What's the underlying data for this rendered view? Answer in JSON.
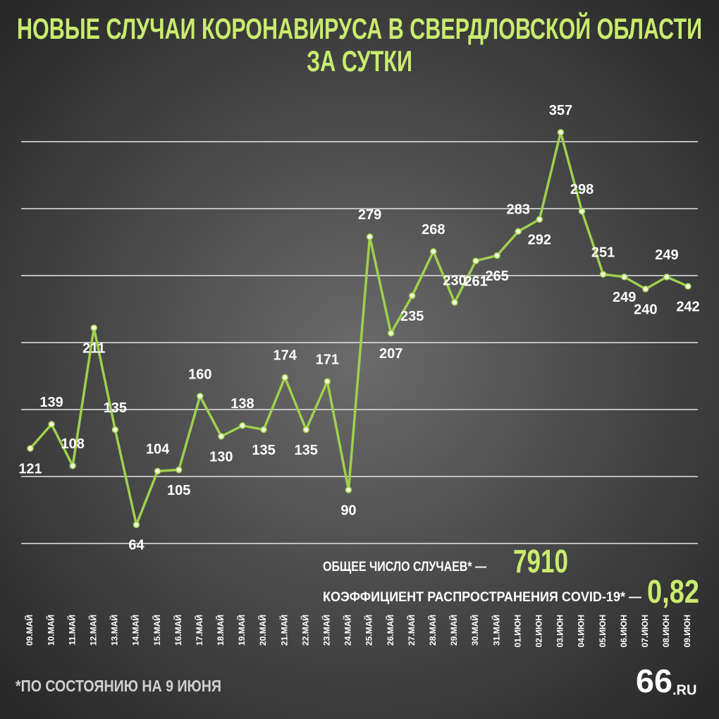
{
  "chart_data": {
    "type": "line",
    "title": [
      "НОВЫЕ СЛУЧАИ КОРОНАВИРУСА В СВЕРДЛОВСКОЙ ОБЛАСТИ",
      "ЗА СУТКИ"
    ],
    "categories": [
      "09.МАЙ",
      "10.МАЙ",
      "11.МАЙ",
      "12.МАЙ",
      "13.МАЙ",
      "14.МАЙ",
      "15.МАЙ",
      "16.МАЙ",
      "17.МАЙ",
      "18.МАЙ",
      "19.МАЙ",
      "20.МАЙ",
      "21.МАЙ",
      "22.МАЙ",
      "23.МАЙ",
      "24.МАЙ",
      "25.МАЙ",
      "26.МАЙ",
      "27.МАЙ",
      "28.МАЙ",
      "29.МАЙ",
      "30.МАЙ",
      "31.МАЙ",
      "01.ИЮН",
      "02.ИЮН",
      "03.ИЮН",
      "04.ИЮН",
      "05.ИЮН",
      "06.ИЮН",
      "07.ИЮН",
      "08.ИЮН",
      "09.ИЮН"
    ],
    "values": [
      121,
      139,
      108,
      211,
      135,
      64,
      104,
      105,
      160,
      130,
      138,
      135,
      174,
      135,
      171,
      90,
      279,
      207,
      235,
      268,
      230,
      261,
      265,
      283,
      292,
      357,
      298,
      251,
      249,
      240,
      249,
      242
    ],
    "color": "#9fd04e",
    "ylim": [
      50,
      400
    ],
    "yticks": [
      50,
      100,
      150,
      200,
      250,
      300,
      350
    ],
    "grid": true,
    "stats": [
      {
        "label": "ОБЩЕЕ ЧИСЛО СЛУЧАЕВ* —",
        "value": "7910"
      },
      {
        "label": "КОЭФФИЦИЕНТ РАСПРОСТРАНЕНИЯ COVID-19* —",
        "value": "0,82"
      }
    ],
    "footnote": "*ПО СОСТОЯНИЮ НА 9 ИЮНЯ",
    "logo": {
      "main": "66",
      "suffix": ".RU"
    }
  }
}
